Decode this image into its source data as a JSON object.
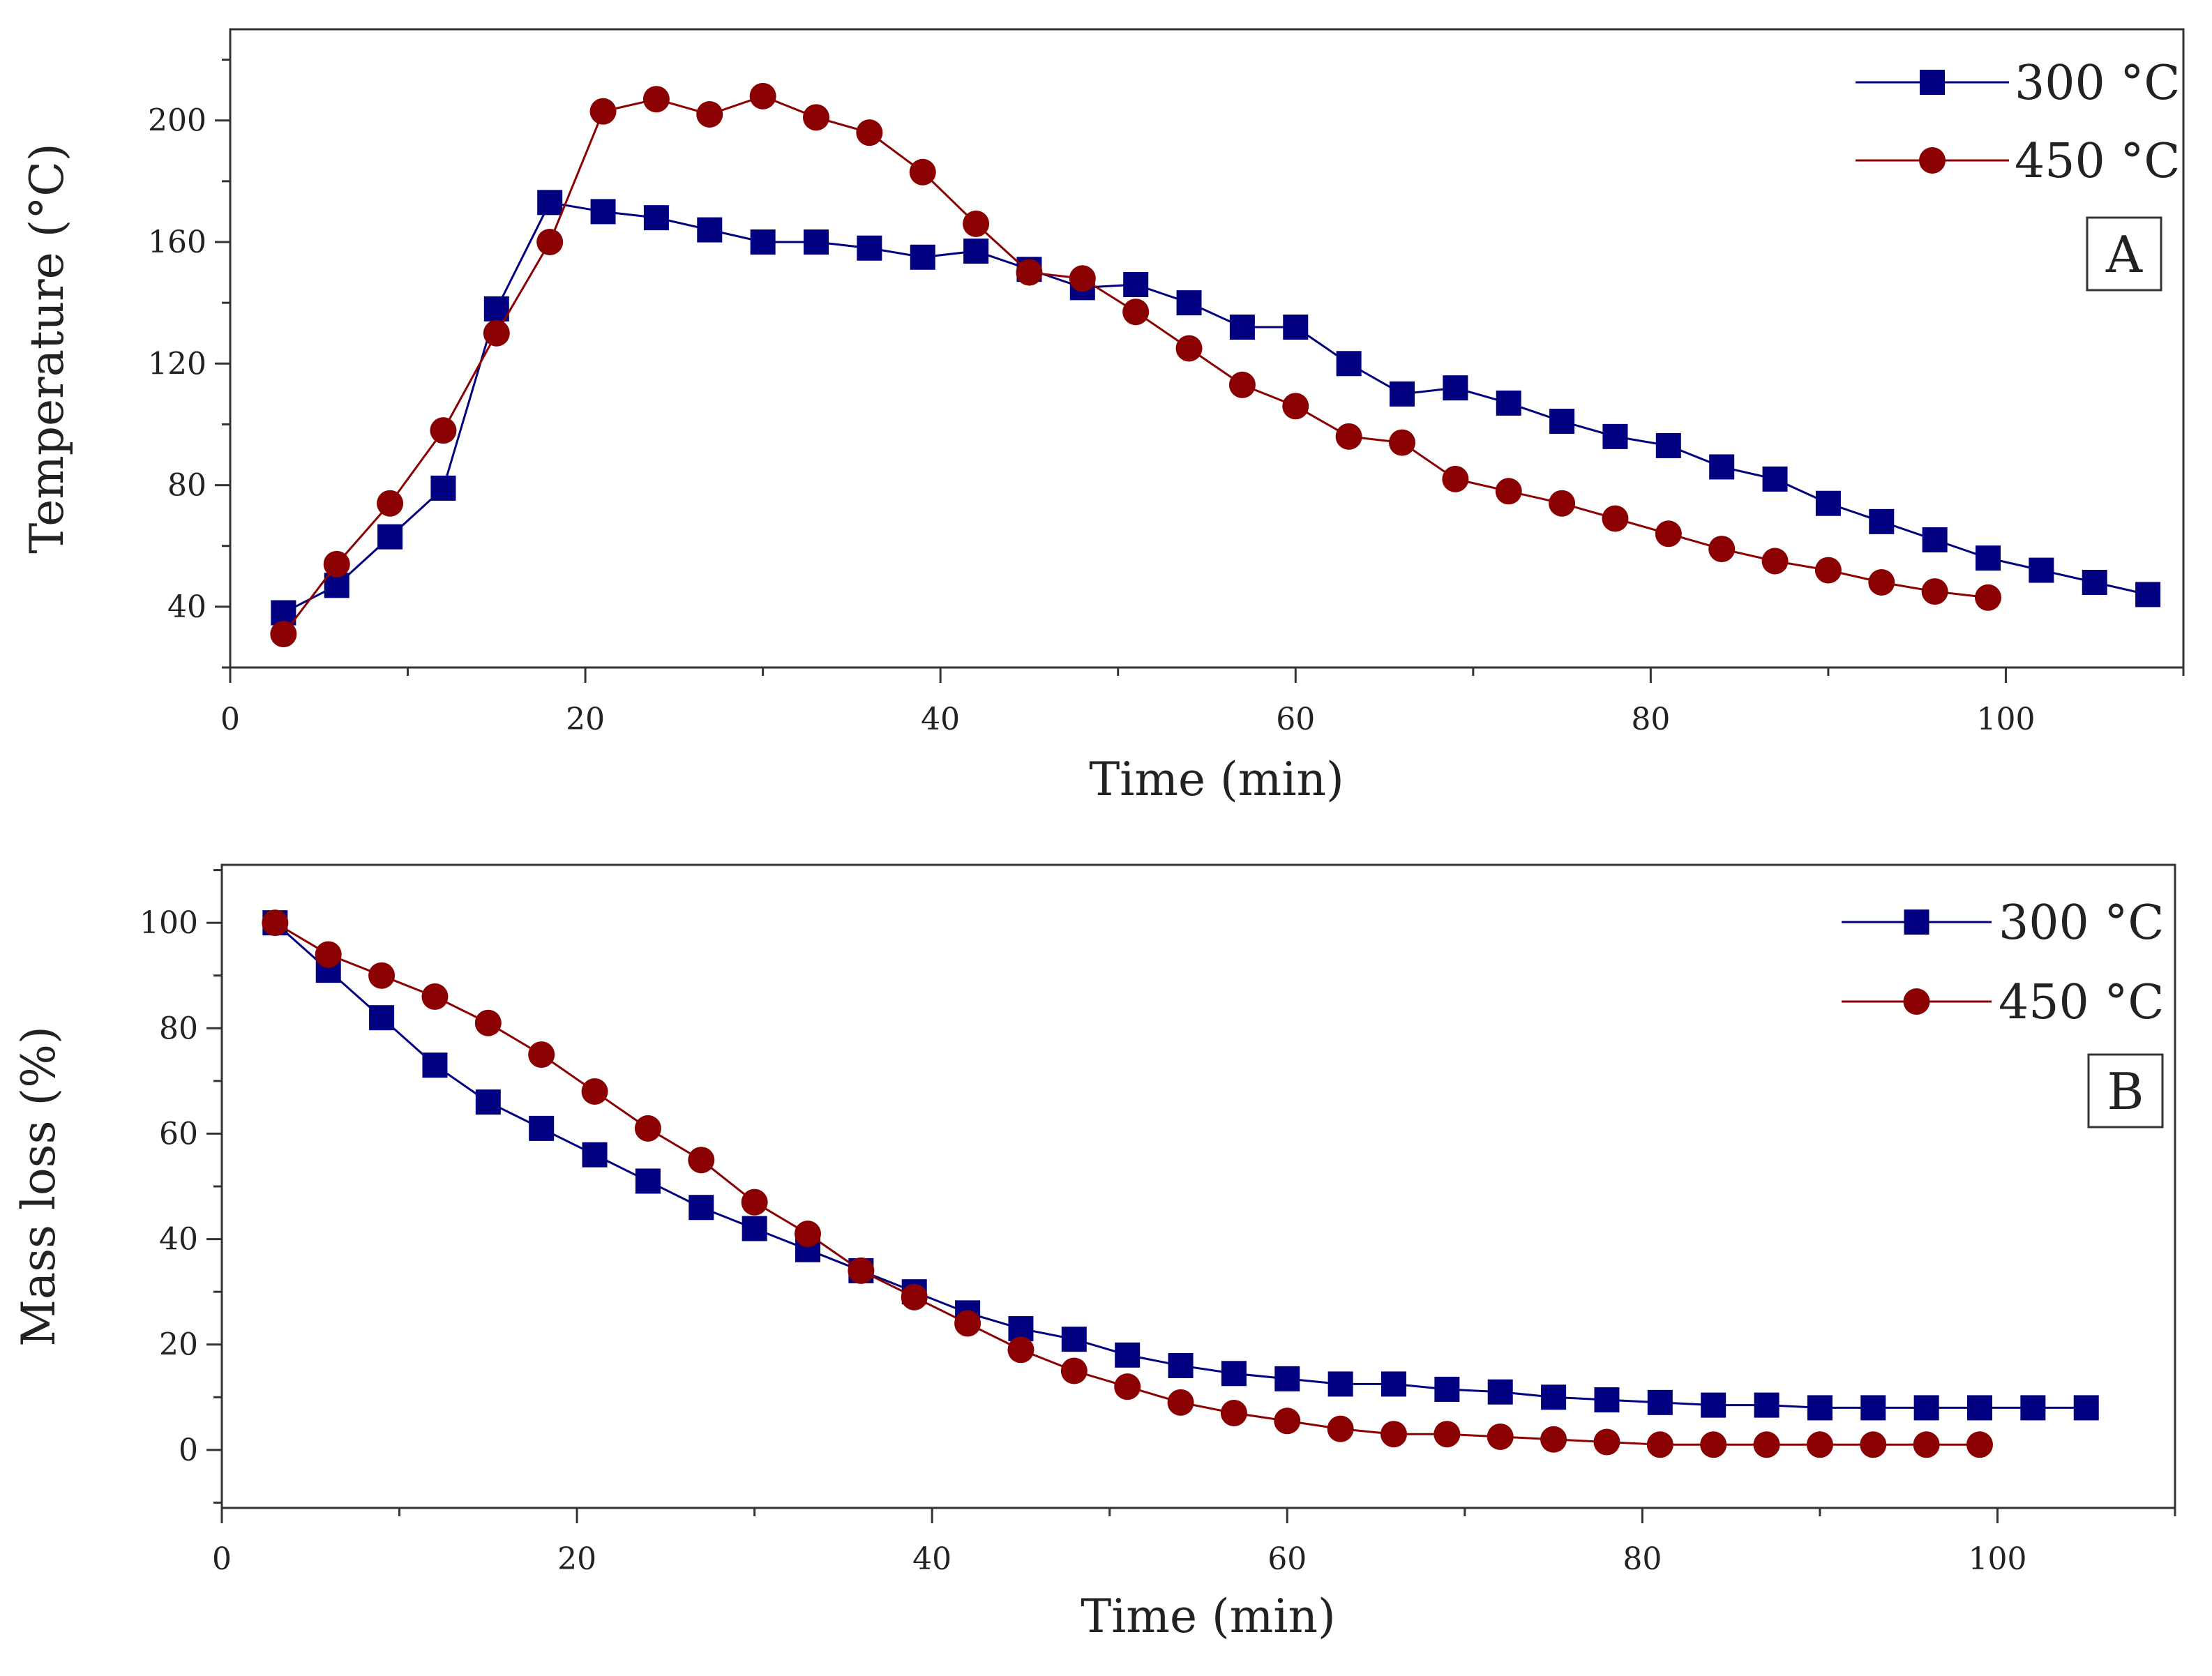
{
  "colors": {
    "s300": "#000080",
    "s450": "#8b0000",
    "axis": "#333333"
  },
  "chart_data": [
    {
      "type": "line",
      "panel": "A",
      "xlabel": "Time (min)",
      "ylabel": "Temperature (°C)",
      "xlim": [
        0,
        110
      ],
      "ylim": [
        20,
        230
      ],
      "xticks": [
        0,
        20,
        40,
        60,
        80,
        100
      ],
      "yticks": [
        40,
        80,
        120,
        160,
        200
      ],
      "grid": false,
      "legend_position": "top-right",
      "series": [
        {
          "name": "300 °C",
          "marker": "square",
          "color": "#000080",
          "x": [
            3,
            6,
            9,
            12,
            15,
            18,
            21,
            24,
            27,
            30,
            33,
            36,
            39,
            42,
            45,
            48,
            51,
            54,
            57,
            60,
            63,
            66,
            69,
            72,
            75,
            78,
            81,
            84,
            87,
            90,
            93,
            96,
            99,
            102,
            105,
            108
          ],
          "y": [
            38,
            47,
            63,
            79,
            138,
            173,
            170,
            168,
            164,
            160,
            160,
            158,
            155,
            157,
            151,
            145,
            146,
            140,
            132,
            132,
            120,
            110,
            112,
            107,
            101,
            96,
            93,
            86,
            82,
            74,
            68,
            62,
            56,
            52,
            48,
            44
          ]
        },
        {
          "name": "450 °C",
          "marker": "circle",
          "color": "#8b0000",
          "x": [
            3,
            6,
            9,
            12,
            15,
            18,
            21,
            24,
            27,
            30,
            33,
            36,
            39,
            42,
            45,
            48,
            51,
            54,
            57,
            60,
            63,
            66,
            69,
            72,
            75,
            78,
            81,
            84,
            87,
            90,
            93,
            96,
            99
          ],
          "y": [
            31,
            54,
            74,
            98,
            130,
            160,
            203,
            207,
            202,
            208,
            201,
            196,
            183,
            166,
            150,
            148,
            137,
            125,
            113,
            106,
            96,
            94,
            82,
            78,
            74,
            69,
            64,
            59,
            55,
            52,
            48,
            45,
            43
          ]
        }
      ]
    },
    {
      "type": "line",
      "panel": "B",
      "xlabel": "Time (min)",
      "ylabel": "Mass loss (%)",
      "xlim": [
        0,
        110
      ],
      "ylim": [
        -11,
        111
      ],
      "xticks": [
        0,
        20,
        40,
        60,
        80,
        100
      ],
      "yticks": [
        0,
        20,
        40,
        60,
        80,
        100
      ],
      "grid": false,
      "legend_position": "top-right",
      "series": [
        {
          "name": "300 °C",
          "marker": "square",
          "color": "#000080",
          "x": [
            3,
            6,
            9,
            12,
            15,
            18,
            21,
            24,
            27,
            30,
            33,
            36,
            39,
            42,
            45,
            48,
            51,
            54,
            57,
            60,
            63,
            66,
            69,
            72,
            75,
            78,
            81,
            84,
            87,
            90,
            93,
            96,
            99,
            102,
            105
          ],
          "y": [
            100,
            91,
            82,
            73,
            66,
            61,
            56,
            51,
            46,
            42,
            38,
            34,
            30,
            26,
            23,
            21,
            18,
            16,
            14.5,
            13.5,
            12.5,
            12.5,
            11.5,
            11,
            10,
            9.5,
            9,
            8.5,
            8.5,
            8,
            8,
            8,
            8,
            8,
            8
          ]
        },
        {
          "name": "450 °C",
          "marker": "circle",
          "color": "#8b0000",
          "x": [
            3,
            6,
            9,
            12,
            15,
            18,
            21,
            24,
            27,
            30,
            33,
            36,
            39,
            42,
            45,
            48,
            51,
            54,
            57,
            60,
            63,
            66,
            69,
            72,
            75,
            78,
            81,
            84,
            87,
            90,
            93,
            96,
            99
          ],
          "y": [
            100,
            94,
            90,
            86,
            81,
            75,
            68,
            61,
            55,
            47,
            41,
            34,
            29,
            24,
            19,
            15,
            12,
            9,
            7,
            5.5,
            4,
            3,
            3,
            2.5,
            2,
            1.5,
            1,
            1,
            1,
            1,
            1,
            1,
            1
          ]
        }
      ]
    }
  ]
}
